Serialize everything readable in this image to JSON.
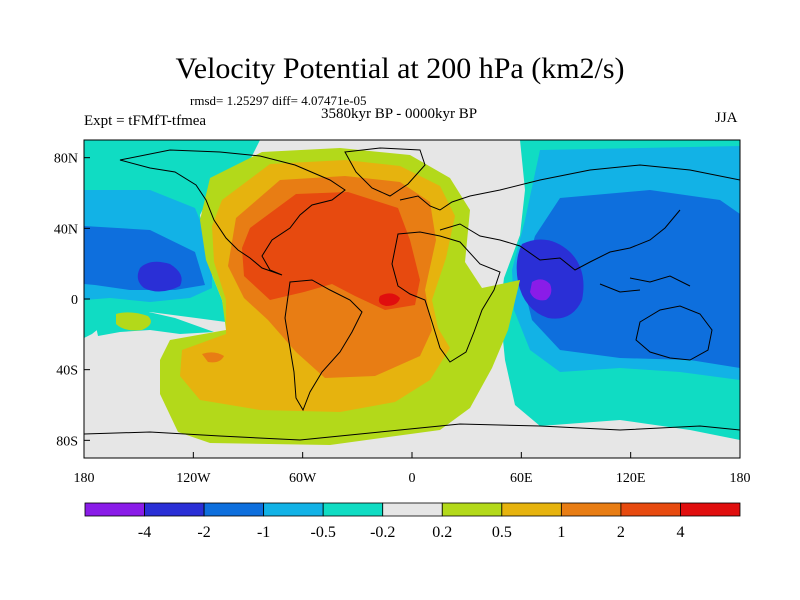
{
  "title": "Velocity Potential at 200 hPa (km2/s)",
  "stats": "rmsd= 1.25297 diff= 4.07471e-05",
  "left_label": "Expt = tFMfT-tfmea",
  "center_label": "3580kyr BP - 0000kyr BP",
  "right_label": "JJA",
  "lat_ticks": [
    {
      "label": "80N",
      "lat": 80
    },
    {
      "label": "40N",
      "lat": 40
    },
    {
      "label": "0",
      "lat": 0
    },
    {
      "label": "40S",
      "lat": -40
    },
    {
      "label": "80S",
      "lat": -80
    }
  ],
  "lon_ticks": [
    {
      "label": "180",
      "lon": -180
    },
    {
      "label": "120W",
      "lon": -120
    },
    {
      "label": "60W",
      "lon": -60
    },
    {
      "label": "0",
      "lon": 0
    },
    {
      "label": "60E",
      "lon": 60
    },
    {
      "label": "120E",
      "lon": 120
    },
    {
      "label": "180",
      "lon": 180
    }
  ],
  "colorbar": {
    "colors": [
      "#8a1ce8",
      "#2a2fd6",
      "#0e6fdd",
      "#12b2e6",
      "#10dcc3",
      "#e6e6e6",
      "#b3d91a",
      "#e6b30e",
      "#e87d14",
      "#e74a0f",
      "#e00e0e"
    ],
    "labels": [
      "-4",
      "-2",
      "-1",
      "-0.5",
      "-0.2",
      "0.2",
      "0.5",
      "1",
      "2",
      "4"
    ]
  },
  "field_colors": {
    "neutral": "#e6e6e6",
    "ocean_top": "#10dcc3",
    "neg_light": "#12b2e6",
    "neg_mid": "#0e6fdd",
    "neg_strong": "#2a2fd6",
    "neg_min": "#8a1ce8",
    "pos_light": "#b3d91a",
    "pos_mid": "#e6b30e",
    "pos_strong": "#e87d14",
    "pos_high": "#e74a0f"
  }
}
